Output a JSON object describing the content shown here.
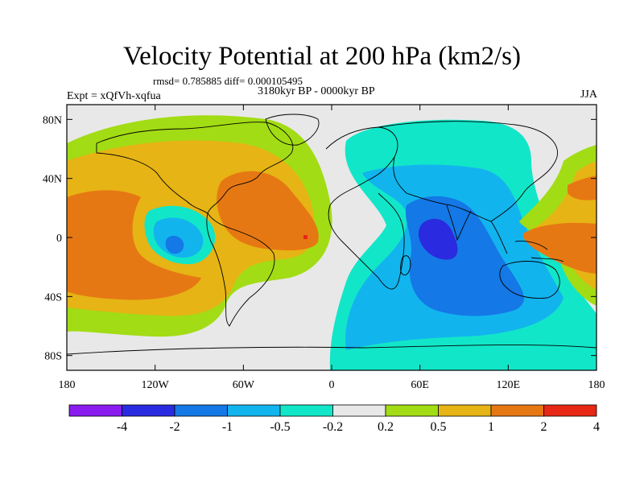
{
  "header": {
    "title": "Velocity Potential at 200 hPa (km2/s)",
    "stats": "rmsd= 0.785885 diff= 0.000105495",
    "period": "3180kyr BP - 0000kyr BP",
    "experiment": "Expt = xQfVh-xqfua",
    "season": "JJA"
  },
  "axes": {
    "x_ticks": [
      "180",
      "120W",
      "60W",
      "0",
      "60E",
      "120E",
      "180"
    ],
    "y_ticks": [
      "80N",
      "40N",
      "0",
      "40S",
      "80S"
    ]
  },
  "colorbar": {
    "labels": [
      "-4",
      "-2",
      "-1",
      "-0.5",
      "-0.2",
      "0.2",
      "0.5",
      "1",
      "2",
      "4"
    ],
    "colors": [
      "#8a1cf0",
      "#2a2ae0",
      "#1478e6",
      "#12b4ee",
      "#12e6c8",
      "#e8e8e8",
      "#a2dc14",
      "#e6b414",
      "#e67814",
      "#e62814"
    ]
  }
}
